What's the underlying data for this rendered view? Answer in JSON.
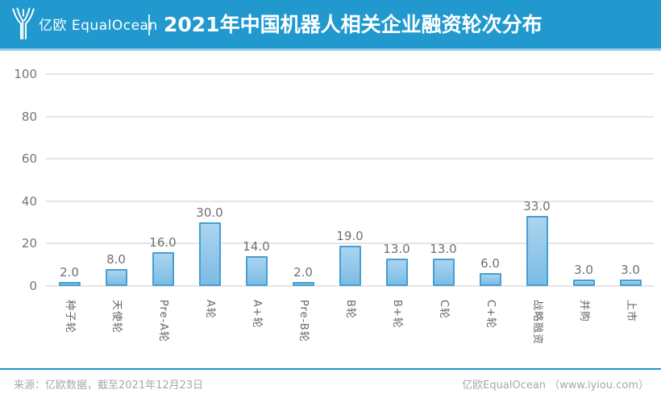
{
  "header": {
    "brand": "亿欧 EqualOcean",
    "title": "2021年中国机器人相关企业融资轮次分布"
  },
  "chart_data": {
    "type": "bar",
    "title": "2021年中国机器人相关企业融资轮次分布",
    "categories": [
      "种子轮",
      "天使轮",
      "Pre-A轮",
      "A轮",
      "A+轮",
      "Pre-B轮",
      "B轮",
      "B+轮",
      "C轮",
      "C+轮",
      "战略融资",
      "并购",
      "上市"
    ],
    "values": [
      2.0,
      8.0,
      16.0,
      30.0,
      14.0,
      2.0,
      19.0,
      13.0,
      13.0,
      6.0,
      33.0,
      3.0,
      3.0
    ],
    "value_label_format": "one_decimal",
    "xlabel": "",
    "ylabel": "",
    "ylim": [
      0,
      100
    ],
    "yticks": [
      0,
      20,
      40,
      60,
      80,
      100
    ],
    "grid": true,
    "legend_position": "none"
  },
  "footer": {
    "source": "来源：亿欧数据，截至2021年12月23日",
    "site": "亿欧EqualOcean （www.iyiou.com）"
  },
  "colors": {
    "header_bg": "#2199CE",
    "header_border": "#8FCBE8",
    "bar_fill_top": "#ABD4EF",
    "bar_fill_bottom": "#7CBCE4",
    "bar_border": "#459FD2",
    "grid_line": "#E5E5E5",
    "axis_text": "#757575",
    "value_text": "#707070",
    "footer_text": "#A2A9B0",
    "footer_line": "#2199CE"
  }
}
